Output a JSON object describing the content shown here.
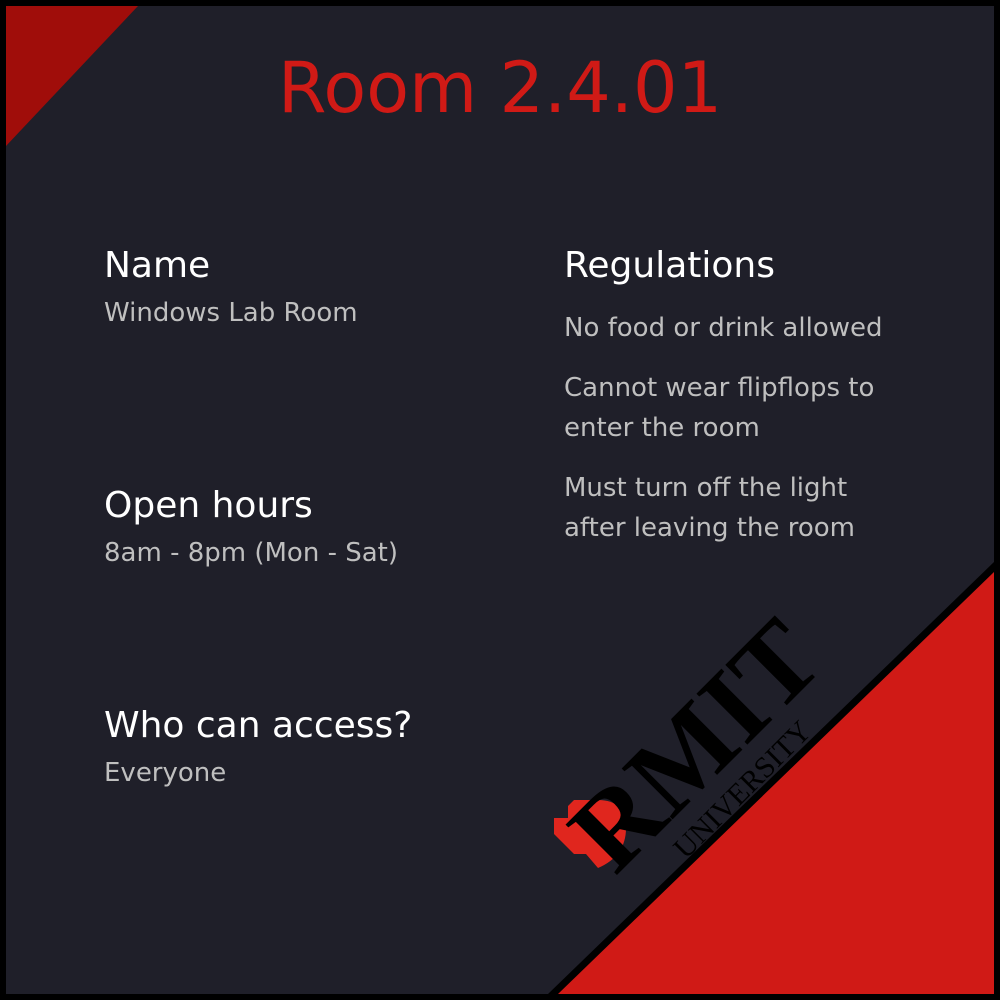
{
  "room": {
    "title": "Room 2.4.01"
  },
  "info": {
    "name_label": "Name",
    "name_value": "Windows Lab Room",
    "hours_label": "Open hours",
    "hours_value": "8am - 8pm (Mon - Sat)",
    "access_label": "Who can access?",
    "access_value": "Everyone"
  },
  "regulations": {
    "heading": "Regulations",
    "items": [
      "No food or drink allowed",
      "Cannot wear flipflops to enter the room",
      "Must turn off the light after leaving the room"
    ]
  },
  "logo": {
    "wordmark": "RMIT",
    "subtext": "UNIVERSITY"
  },
  "colors": {
    "accent": "#d01a16",
    "corner_dark_red": "#a00d0a",
    "background": "#1f1f29",
    "border": "#000000",
    "label_text": "#ffffff",
    "value_text": "#bfbfbf"
  }
}
